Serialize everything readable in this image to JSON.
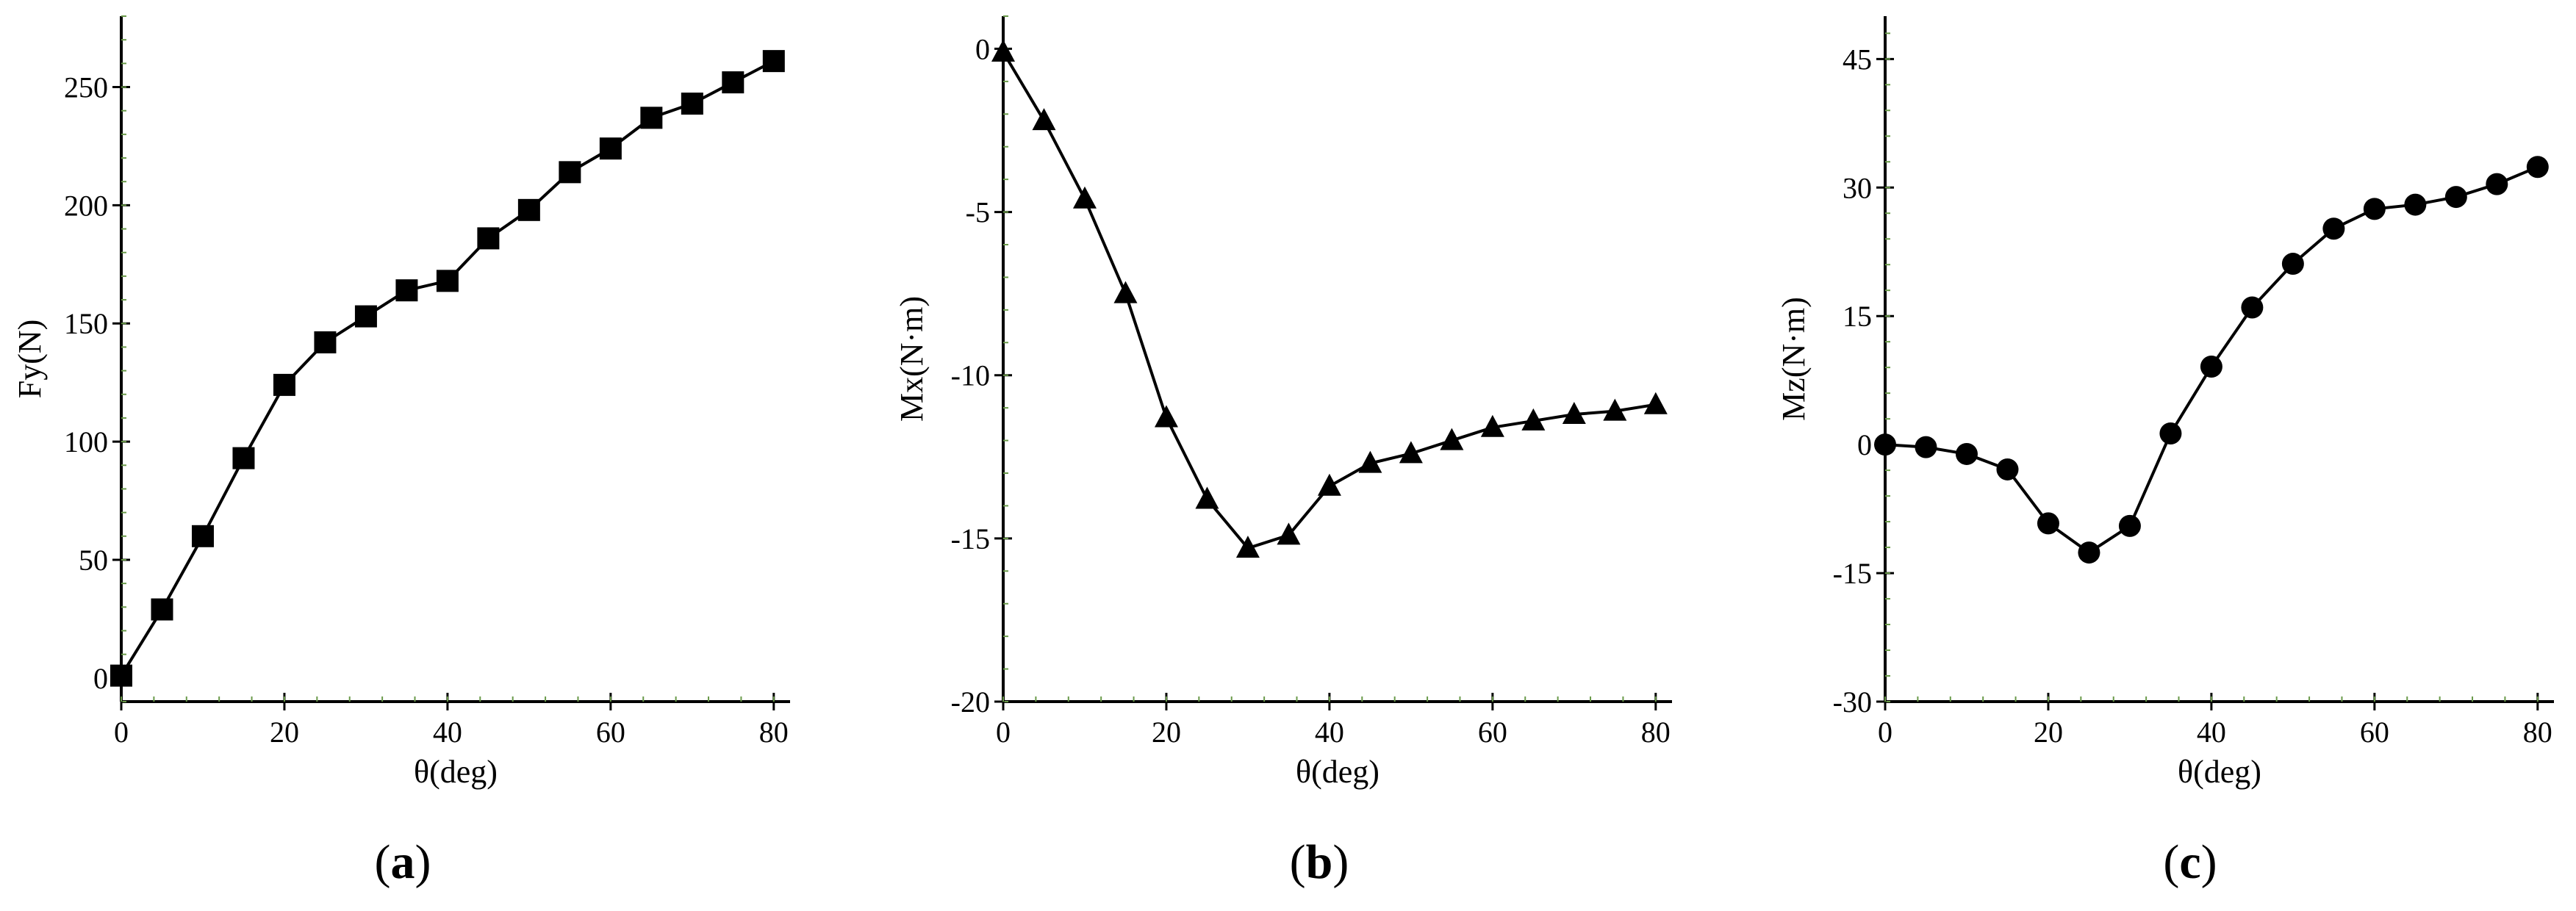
{
  "chart_data": [
    {
      "type": "line",
      "panel_label": "a",
      "xlabel": "θ(deg)",
      "ylabel": "Fy(N)",
      "marker": "square",
      "xlim": [
        0,
        82
      ],
      "ylim": [
        -10,
        280
      ],
      "xticks": [
        0,
        20,
        40,
        60,
        80
      ],
      "yticks": [
        0,
        50,
        100,
        150,
        200,
        250
      ],
      "x": [
        0,
        5,
        10,
        15,
        20,
        25,
        30,
        35,
        40,
        45,
        50,
        55,
        60,
        65,
        70,
        75,
        80
      ],
      "series": [
        {
          "name": "Fy",
          "values": [
            1,
            29,
            60,
            93,
            124,
            142,
            153,
            164,
            168,
            186,
            198,
            214,
            224,
            237,
            243,
            252,
            261
          ]
        }
      ]
    },
    {
      "type": "line",
      "panel_label": "b",
      "xlabel": "θ(deg)",
      "ylabel": "Mx(N·m)",
      "marker": "triangle",
      "xlim": [
        0,
        82
      ],
      "ylim": [
        -20,
        1
      ],
      "xticks": [
        0,
        20,
        40,
        60,
        80
      ],
      "yticks": [
        -20,
        -15,
        -10,
        -5,
        0
      ],
      "x": [
        0,
        5,
        10,
        15,
        20,
        25,
        30,
        35,
        40,
        45,
        50,
        55,
        60,
        65,
        70,
        75,
        80
      ],
      "series": [
        {
          "name": "Mx",
          "values": [
            -0.1,
            -2.2,
            -4.6,
            -7.5,
            -11.3,
            -13.8,
            -15.3,
            -14.9,
            -13.4,
            -12.7,
            -12.4,
            -12.0,
            -11.6,
            -11.4,
            -11.2,
            -11.1,
            -10.9
          ]
        }
      ]
    },
    {
      "type": "line",
      "panel_label": "c",
      "xlabel": "θ(deg)",
      "ylabel": "Mz(N·m)",
      "marker": "circle",
      "xlim": [
        0,
        82
      ],
      "ylim": [
        -30,
        50
      ],
      "xticks": [
        0,
        20,
        40,
        60,
        80
      ],
      "yticks": [
        -30,
        -15,
        0,
        15,
        30,
        45
      ],
      "x": [
        0,
        5,
        10,
        15,
        20,
        25,
        30,
        35,
        40,
        45,
        50,
        55,
        60,
        65,
        70,
        75,
        80
      ],
      "series": [
        {
          "name": "Mz",
          "values": [
            0,
            -0.3,
            -1.1,
            -2.9,
            -9.2,
            -12.6,
            -9.5,
            1.3,
            9.1,
            16.0,
            21.1,
            25.2,
            27.5,
            28.0,
            28.9,
            30.4,
            32.4
          ]
        }
      ]
    }
  ]
}
